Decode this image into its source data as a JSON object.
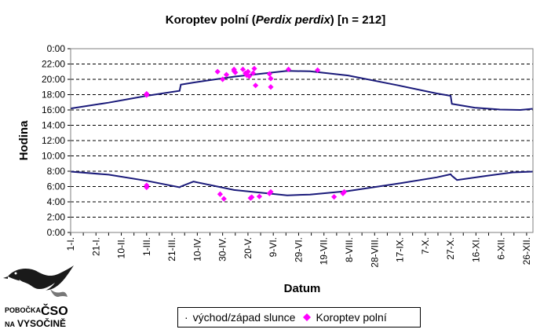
{
  "chart_data": {
    "type": "scatter",
    "title": "Koroptev polní (",
    "title_italic": "Perdix perdix",
    "title_end": ") [n = 212]",
    "xlabel": "Datum",
    "ylabel": "Hodina",
    "x_tick_labels": [
      "1-I.",
      "21-I.",
      "10-II.",
      "1-III.",
      "21-III.",
      "10-IV.",
      "30-IV.",
      "20-V.",
      "9-VI.",
      "29-VI.",
      "19-VII.",
      "8-VIII.",
      "28-VIII.",
      "17-IX.",
      "7-X.",
      "27-X.",
      "16-XI.",
      "6-XII.",
      "26-XII."
    ],
    "y_tick_labels": [
      "0:00",
      "2:00",
      "4:00",
      "6:00",
      "8:00",
      "10:00",
      "12:00",
      "14:00",
      "16:00",
      "18:00",
      "20:00",
      "22:00",
      "0:00"
    ],
    "ylim": [
      24,
      0
    ],
    "xlim_day_of_year": [
      1,
      366
    ],
    "grid": "horizontal dashed",
    "legend_position": "bottom",
    "series": [
      {
        "name": "východ/západ slunce",
        "color": "#1a1a7a",
        "sunset_curve": [
          [
            1,
            16.2
          ],
          [
            31,
            16.95
          ],
          [
            61,
            17.85
          ],
          [
            87,
            18.5
          ],
          [
            88,
            19.3
          ],
          [
            99,
            19.6
          ],
          [
            130,
            20.35
          ],
          [
            172,
            21.1
          ],
          [
            190,
            21.05
          ],
          [
            220,
            20.5
          ],
          [
            260,
            19.2
          ],
          [
            290,
            18.15
          ],
          [
            301,
            17.85
          ],
          [
            302,
            16.8
          ],
          [
            320,
            16.3
          ],
          [
            340,
            16.05
          ],
          [
            356,
            16.0
          ],
          [
            366,
            16.15
          ]
        ],
        "sunrise_curve": [
          [
            1,
            7.95
          ],
          [
            31,
            7.55
          ],
          [
            61,
            6.75
          ],
          [
            87,
            5.9
          ],
          [
            88,
            6.0
          ],
          [
            98,
            6.65
          ],
          [
            130,
            5.55
          ],
          [
            172,
            4.85
          ],
          [
            190,
            4.95
          ],
          [
            220,
            5.4
          ],
          [
            260,
            6.4
          ],
          [
            290,
            7.2
          ],
          [
            301,
            7.6
          ],
          [
            302,
            7.4
          ],
          [
            306,
            6.85
          ],
          [
            330,
            7.4
          ],
          [
            350,
            7.85
          ],
          [
            366,
            7.95
          ]
        ]
      },
      {
        "name": "Koroptev polní",
        "color": "#ff00ff",
        "points": [
          [
            61,
            18.1
          ],
          [
            61,
            17.95
          ],
          [
            61,
            6.15
          ],
          [
            61,
            5.9
          ],
          [
            117,
            21.0
          ],
          [
            121,
            20.0
          ],
          [
            124,
            20.6
          ],
          [
            130,
            21.1
          ],
          [
            130,
            21.3
          ],
          [
            131,
            20.9
          ],
          [
            137,
            21.3
          ],
          [
            139,
            20.8
          ],
          [
            140,
            20.55
          ],
          [
            141,
            21.0
          ],
          [
            142,
            20.4
          ],
          [
            145,
            20.8
          ],
          [
            146,
            21.4
          ],
          [
            147,
            19.2
          ],
          [
            158,
            20.7
          ],
          [
            159,
            20.1
          ],
          [
            159,
            19.0
          ],
          [
            173,
            21.3
          ],
          [
            196,
            21.2
          ],
          [
            119,
            5.0
          ],
          [
            122,
            4.4
          ],
          [
            143,
            4.5
          ],
          [
            144,
            4.6
          ],
          [
            150,
            4.7
          ],
          [
            158,
            5.1
          ],
          [
            159,
            5.3
          ],
          [
            209,
            4.65
          ],
          [
            216,
            5.1
          ],
          [
            217,
            5.3
          ]
        ]
      }
    ]
  },
  "logo": {
    "line1": "POBOČKA",
    "big": "ČSO",
    "line2": "NA",
    "big2": "VYSOČINĚ"
  }
}
